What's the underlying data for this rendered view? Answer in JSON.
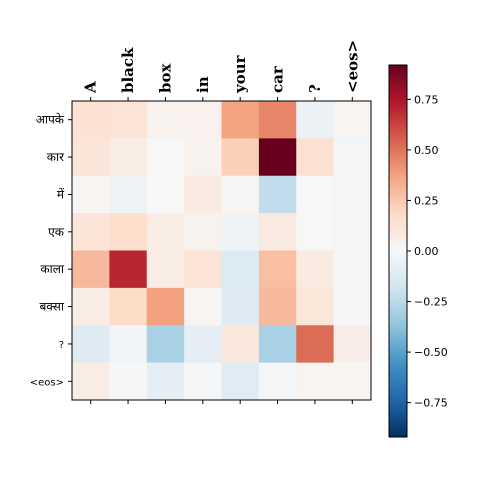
{
  "chart_data": {
    "type": "heatmap",
    "title": "",
    "xlabel": "",
    "ylabel": "",
    "x_categories": [
      "A",
      "black",
      "box",
      "in",
      "your",
      "car",
      "?",
      "<eos>"
    ],
    "y_categories": [
      "आपके",
      "कार",
      "में",
      "एक",
      "काला",
      "बक्सा",
      "?",
      "<eos>"
    ],
    "values": [
      [
        0.14,
        0.13,
        0.03,
        0.04,
        0.37,
        0.45,
        -0.06,
        0.02
      ],
      [
        0.12,
        0.07,
        0.0,
        0.03,
        0.22,
        0.92,
        0.15,
        -0.02
      ],
      [
        0.02,
        -0.05,
        0.0,
        0.08,
        0.01,
        -0.23,
        0.0,
        -0.02
      ],
      [
        0.12,
        0.16,
        0.07,
        0.03,
        -0.04,
        0.09,
        0.0,
        -0.02
      ],
      [
        0.3,
        0.7,
        0.07,
        0.13,
        -0.13,
        0.28,
        0.08,
        -0.01
      ],
      [
        0.07,
        0.18,
        0.38,
        0.02,
        -0.12,
        0.3,
        0.11,
        -0.01
      ],
      [
        -0.12,
        -0.03,
        -0.3,
        -0.09,
        0.1,
        -0.3,
        0.52,
        0.06
      ],
      [
        0.07,
        -0.01,
        -0.09,
        -0.01,
        -0.11,
        -0.02,
        0.02,
        0.02
      ]
    ],
    "colormap": "RdBu_r",
    "vmin": -0.92,
    "vmax": 0.92,
    "colorbar_ticks": [
      "0.75",
      "0.50",
      "0.25",
      "0.00",
      "−0.25",
      "−0.50",
      "−0.75"
    ],
    "colorbar_tick_values": [
      0.75,
      0.5,
      0.25,
      0.0,
      -0.25,
      -0.5,
      -0.75
    ],
    "grid": false
  }
}
